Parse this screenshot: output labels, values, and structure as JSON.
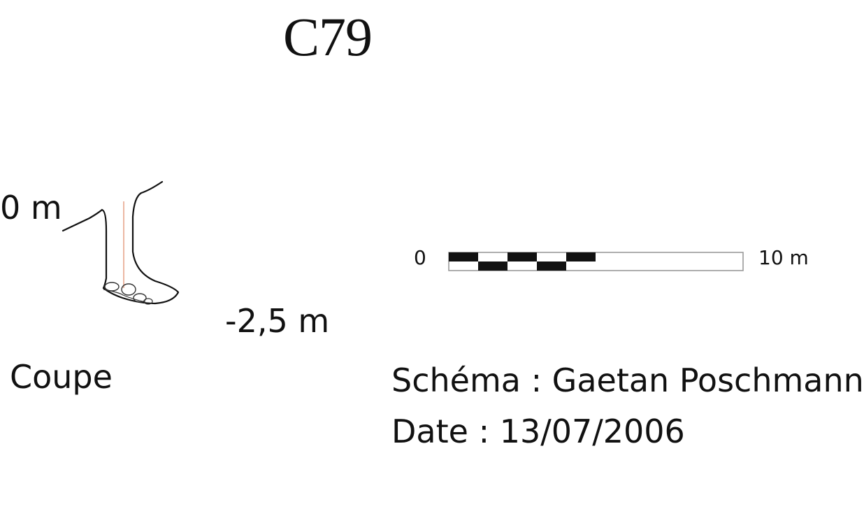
{
  "title": "C79",
  "section": {
    "top_depth_label": "0 m",
    "bottom_depth_label": "-2,5 m",
    "view_label": "Coupe"
  },
  "scale": {
    "start_label": "0",
    "end_label": "10 m"
  },
  "credits": {
    "author_line": "Schéma : Gaetan Poschmann",
    "date_line": "Date : 13/07/2006"
  },
  "colors": {
    "ink": "#111111",
    "axis_line": "#e8a58c",
    "scale_outline": "#9a9a9a"
  }
}
